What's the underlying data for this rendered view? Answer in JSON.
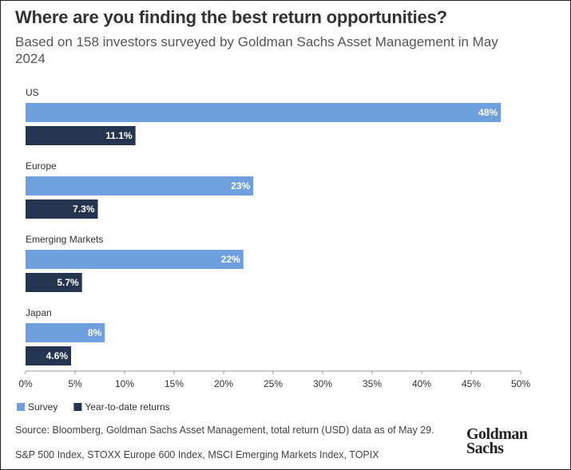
{
  "chart_data": {
    "type": "bar",
    "orientation": "horizontal",
    "title": "Where are you finding the best return opportunities?",
    "subtitle": "Based on 158 investors surveyed by Goldman Sachs Asset Management in May 2024",
    "categories": [
      "US",
      "Europe",
      "Emerging Markets",
      "Japan"
    ],
    "series": [
      {
        "name": "Survey",
        "color": "#6f9fdc",
        "values": [
          48,
          23,
          22,
          8
        ],
        "value_labels": [
          "48%",
          "23%",
          "22%",
          "8%"
        ]
      },
      {
        "name": "Year-to-date returns",
        "color": "#253550",
        "values": [
          11.1,
          7.3,
          5.7,
          4.6
        ],
        "value_labels": [
          "11.1%",
          "7.3%",
          "5.7%",
          "4.6%"
        ]
      }
    ],
    "xlim": [
      0,
      50
    ],
    "xticks": [
      {
        "value": 0,
        "label": "0%"
      },
      {
        "value": 5,
        "label": "5%"
      },
      {
        "value": 10,
        "label": "10%"
      },
      {
        "value": 15,
        "label": "15%"
      },
      {
        "value": 20,
        "label": "20%"
      },
      {
        "value": 25,
        "label": "25%"
      },
      {
        "value": 30,
        "label": "30%"
      },
      {
        "value": 35,
        "label": "35%"
      },
      {
        "value": 40,
        "label": "40%"
      },
      {
        "value": 45,
        "label": "45%"
      },
      {
        "value": 50,
        "label": "50%"
      }
    ],
    "grid": false,
    "legend": "bottom-left",
    "source": "Source: Bloomberg, Goldman Sachs Asset Management, total return (USD) data as of May 29.",
    "note": "S&P 500 Index, STOXX Europe 600 Index, MSCI Emerging Markets Index, TOPIX",
    "logo": "Goldman Sachs"
  }
}
